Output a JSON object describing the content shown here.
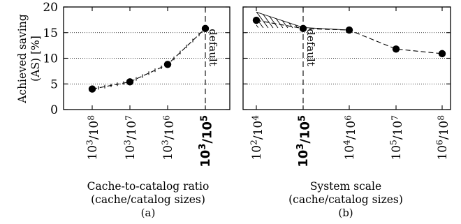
{
  "ylabel_line1": "Achieved saving",
  "ylabel_line2": "(AS) [%]",
  "chart_data": [
    {
      "type": "line",
      "panel": "a",
      "categories": [
        "10^3/10^8",
        "10^3/10^7",
        "10^3/10^6",
        "10^3/10^5"
      ],
      "tick_labels": [
        {
          "base": "10",
          "exp": "3",
          "base2": "10",
          "exp2": "8",
          "bold": false
        },
        {
          "base": "10",
          "exp": "3",
          "base2": "10",
          "exp2": "7",
          "bold": false
        },
        {
          "base": "10",
          "exp": "3",
          "base2": "10",
          "exp2": "6",
          "bold": false
        },
        {
          "base": "10",
          "exp": "3",
          "base2": "10",
          "exp2": "5",
          "bold": true
        }
      ],
      "values": [
        4.0,
        5.4,
        8.8,
        15.8
      ],
      "ylim": [
        0,
        20
      ],
      "yticks": [
        0,
        5,
        10,
        15,
        20
      ],
      "grid": "horizontal-dotted",
      "xlabel_line1": "Cache-to-catalog ratio",
      "xlabel_line2": "(cache/catalog sizes)",
      "caption": "(a)",
      "annotation": {
        "text": "default",
        "category_index": 3
      }
    },
    {
      "type": "line",
      "panel": "b",
      "categories": [
        "10^2/10^4",
        "10^3/10^5",
        "10^4/10^6",
        "10^5/10^7",
        "10^6/10^8"
      ],
      "tick_labels": [
        {
          "base": "10",
          "exp": "2",
          "base2": "10",
          "exp2": "4",
          "bold": false
        },
        {
          "base": "10",
          "exp": "3",
          "base2": "10",
          "exp2": "5",
          "bold": true
        },
        {
          "base": "10",
          "exp": "4",
          "base2": "10",
          "exp2": "6",
          "bold": false
        },
        {
          "base": "10",
          "exp": "5",
          "base2": "10",
          "exp2": "7",
          "bold": false
        },
        {
          "base": "10",
          "exp": "6",
          "base2": "10",
          "exp2": "8",
          "bold": false
        }
      ],
      "values": [
        17.4,
        15.8,
        15.5,
        11.8,
        10.9
      ],
      "ylim": [
        0,
        20
      ],
      "yticks": [
        0,
        5,
        10,
        15,
        20
      ],
      "grid": "horizontal-dotted",
      "xlabel_line1": "System scale",
      "xlabel_line2": "(cache/catalog sizes)",
      "caption": "(b)",
      "annotation": {
        "text": "default",
        "category_index": 1
      },
      "hatched_band": {
        "from_category": 0,
        "to_category": 2,
        "upper": [
          19.0,
          16.0,
          15.5
        ],
        "lower": [
          16.0,
          15.4,
          15.5
        ]
      }
    }
  ]
}
